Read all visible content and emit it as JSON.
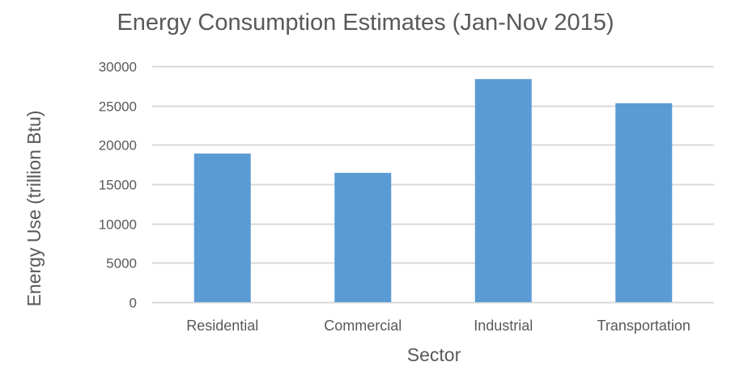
{
  "chart_data": {
    "type": "bar",
    "title": "Energy Consumption Estimates (Jan-Nov 2015)",
    "xlabel": "Sector",
    "ylabel": "Energy Use (trillion Btu)",
    "categories": [
      "Residential",
      "Commercial",
      "Industrial",
      "Transportation"
    ],
    "values": [
      18900,
      16450,
      28370,
      25300
    ],
    "ylim": [
      0,
      30000
    ],
    "yticks": [
      0,
      5000,
      10000,
      15000,
      20000,
      25000,
      30000
    ],
    "ytick_labels": [
      "0",
      "5000",
      "10000",
      "15000",
      "20000",
      "25000",
      "30000"
    ],
    "grid": true,
    "legend": "none",
    "bar_color": "#5B9BD5",
    "grid_color": "#D9D9D9"
  }
}
